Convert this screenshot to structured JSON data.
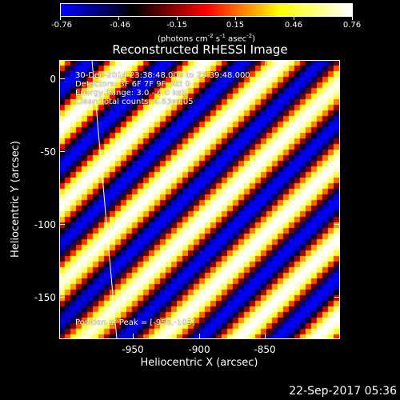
{
  "title": "Reconstructed RHESSI Image",
  "colorbar": {
    "ticks": [
      "-0.76",
      "-0.46",
      "-0.15",
      "0.15",
      "0.46",
      "0.76"
    ],
    "units_prefix": "(photons cm",
    "units_exp1": "-2",
    "units_s": " s",
    "units_exp2": "-1",
    "units_asec": " asec",
    "units_exp3": "-2",
    "units_suffix": ")",
    "colors": [
      "#0000ff",
      "#000000",
      "#ff0000",
      "#ffff00",
      "#ffffff"
    ]
  },
  "annotations": {
    "time": "30-Dec-2014 23:38:48.000 to 23:39:48.000",
    "detectors": "Detectors: 3F 6F 7F 9F, Att 0",
    "energy": "Energy Range: 3.0 - 6.0 keV",
    "method": "Clean    Total counts: 4.63e+05",
    "peak": "Position of Peak = [-958,-105]"
  },
  "axes": {
    "xlabel": "Heliocentric X (arcsec)",
    "ylabel": "Heliocentric Y (arcsec)",
    "xticks": [
      "-950",
      "-900",
      "-850"
    ],
    "yticks": [
      "0",
      "-50",
      "-100",
      "-150"
    ],
    "xlim": [
      -993,
      -810
    ],
    "ylim": [
      -180,
      13
    ]
  },
  "footer": {
    "date": "22-Sep-2017 05:36"
  }
}
